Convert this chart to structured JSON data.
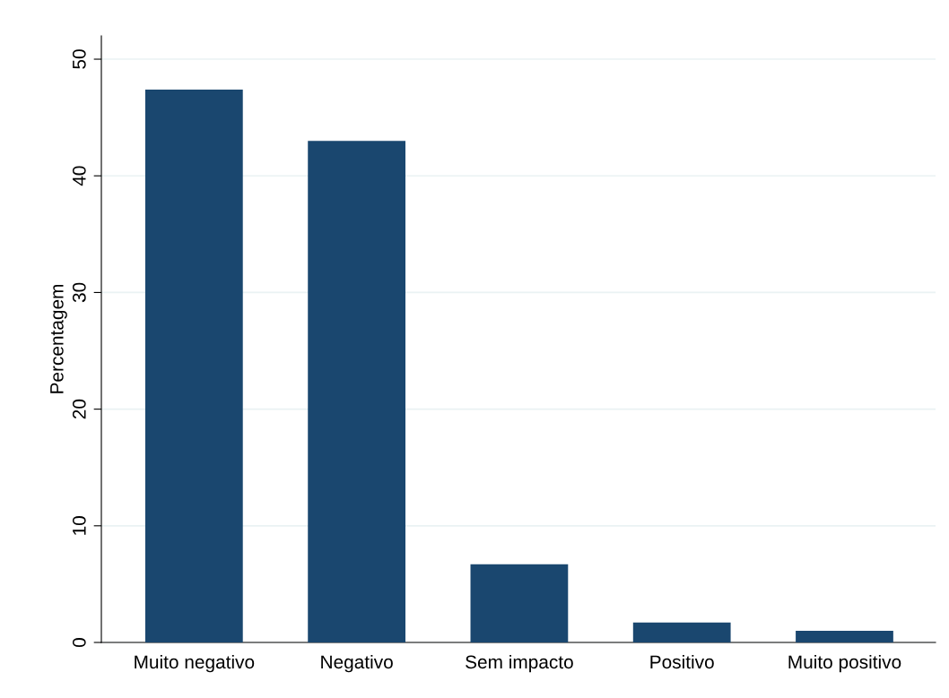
{
  "chart_data": {
    "type": "bar",
    "ylabel": "Percentagem",
    "categories": [
      "Muito negativo",
      "Negativo",
      "Sem impacto",
      "Positivo",
      "Muito positivo"
    ],
    "values": [
      47.4,
      43.0,
      6.7,
      1.7,
      1.0
    ],
    "color": "#1a476f",
    "ylim": [
      0,
      52
    ],
    "yticks": [
      0,
      10,
      20,
      30,
      40,
      50
    ],
    "grid": "y"
  }
}
